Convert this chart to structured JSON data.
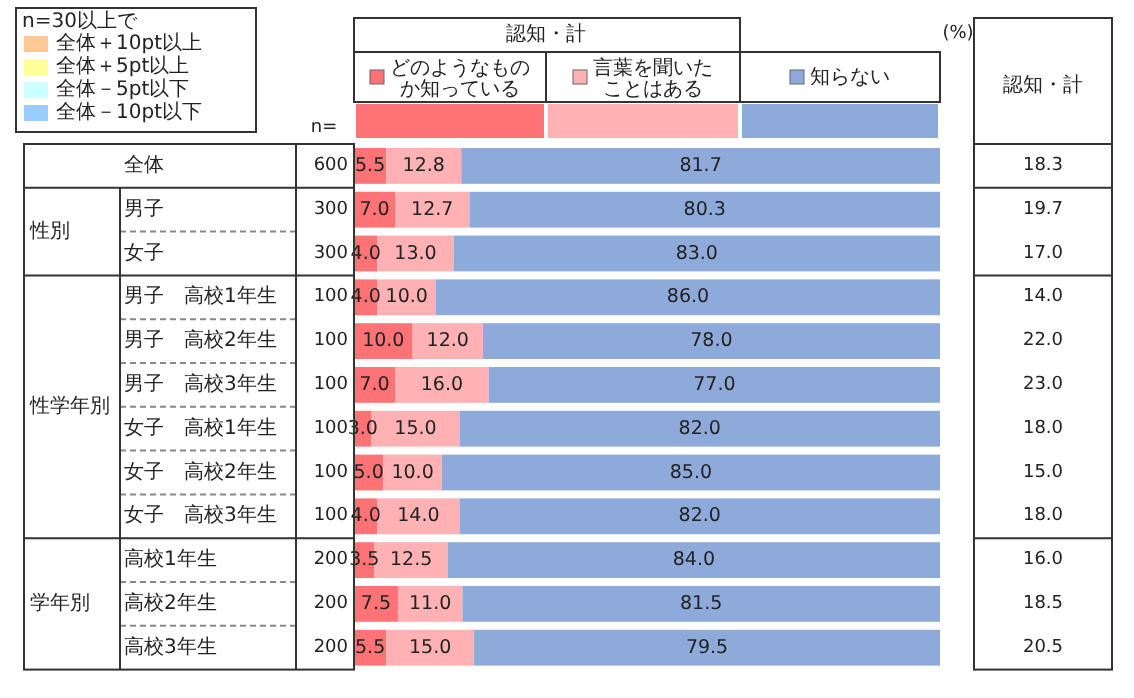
{
  "chart_data": {
    "type": "bar",
    "orientation": "horizontal",
    "stacked": true,
    "legend": "top",
    "xlim": [
      0,
      100
    ],
    "categories": [
      "全体",
      "男子",
      "女子",
      "男子　高校1年生",
      "男子　高校2年生",
      "男子　高校3年生",
      "女子　高校1年生",
      "女子　高校2年生",
      "女子　高校3年生",
      "高校1年生",
      "高校2年生",
      "高校3年生"
    ],
    "series": [
      {
        "name": "どのようなものか知っている",
        "color": "#ff7377",
        "values": [
          5.5,
          7.0,
          4.0,
          4.0,
          10.0,
          7.0,
          3.0,
          5.0,
          4.0,
          3.5,
          7.5,
          5.5
        ],
        "value_labels": [
          "5.5",
          "7.0",
          "4.0",
          "4.0",
          "10.0",
          "7.0",
          "3.0",
          "5.0",
          "4.0",
          "3.5",
          "7.5",
          "5.5"
        ]
      },
      {
        "name": "言葉を聞いたことはある",
        "color": "#ffb1b4",
        "values": [
          12.8,
          12.7,
          13.0,
          10.0,
          12.0,
          16.0,
          15.0,
          10.0,
          14.0,
          12.5,
          11.0,
          15.0
        ],
        "value_labels": [
          "12.8",
          "12.7",
          "13.0",
          "10.0",
          "12.0",
          "16.0",
          "15.0",
          "10.0",
          "14.0",
          "12.5",
          "11.0",
          "15.0"
        ]
      },
      {
        "name": "知らない",
        "color": "#8eaadb",
        "values": [
          81.7,
          80.3,
          83.0,
          86.0,
          78.0,
          77.0,
          82.0,
          85.0,
          82.0,
          84.0,
          81.5,
          79.5
        ],
        "value_labels": [
          "81.7",
          "80.3",
          "83.0",
          "86.0",
          "78.0",
          "77.0",
          "82.0",
          "85.0",
          "82.0",
          "84.0",
          "81.5",
          "79.5"
        ]
      }
    ],
    "annotations": [
      "n=30以上で",
      "全体＋10pt以上",
      "全体＋5pt以上",
      "全体－5pt以下",
      "全体－10pt以下",
      "認知・計",
      "(%)",
      "認知・計",
      "n=",
      "性別",
      "性学年別",
      "学年別",
      "600",
      "300",
      "300",
      "100",
      "100",
      "100",
      "100",
      "100",
      "100",
      "200",
      "200",
      "200",
      "18.3",
      "19.7",
      "17.0",
      "14.0",
      "22.0",
      "23.0",
      "18.0",
      "15.0",
      "18.0",
      "16.0",
      "18.5",
      "20.5"
    ]
  }
}
